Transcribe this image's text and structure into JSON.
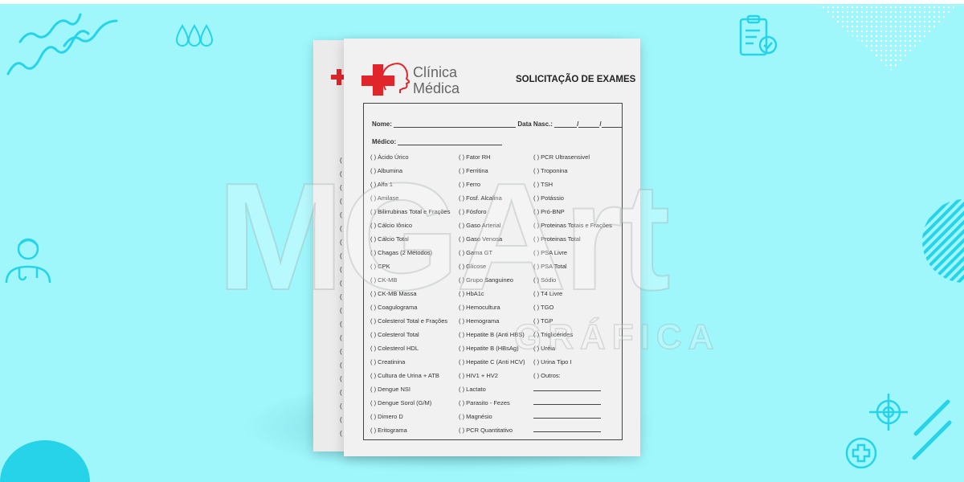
{
  "form": {
    "brand_line1": "Clínica",
    "brand_line2": "Médica",
    "title": "SOLICITAÇÃO DE EXAMES",
    "name_label": "Nome:",
    "birth_label": "Data Nasc.:",
    "doctor_label": "Médico:",
    "col1": [
      "( ) Ácido Úrico",
      "( ) Albumina",
      "( ) Alfa 1",
      "( ) Amilase",
      "( ) Bilirrubinas Total e Frações",
      "( ) Cálcio Iônico",
      "( ) Cálcio Total",
      "( ) Chagas (2 Métodos)",
      "( ) CPK",
      "( ) CK-MB",
      "( ) CK-MB Massa",
      "( ) Coagulograma",
      "( ) Colesterol Total e Frações",
      "( ) Colesterol Total",
      "( ) Colesterol HDL",
      "( ) Creatinina",
      "( ) Cultura de Urina + ATB",
      "( ) Dengue NSI",
      "( ) Dengue Sorol (G/M)",
      "( ) Dimero D",
      "( ) Eritograma"
    ],
    "col2": [
      "( ) Fator RH",
      "( ) Ferritina",
      "( ) Ferro",
      "( ) Fosf. Alcalina",
      "( ) Fósforo",
      "( ) Gaso Arterial",
      "( ) Gaso Venosa",
      "( ) Gama GT",
      "( ) Glicose",
      "( ) Grupo Sanguineo",
      "( ) HbA1c",
      "( ) Hemocultura",
      "( ) Hemograma",
      "( ) Hepatite B (Anti HBS)",
      "( ) Hepatite B (HBsAg)",
      "( ) Hepatite C (Anti HCV)",
      "( ) HIV1 + HV2",
      "( ) Lactato",
      "( ) Parasito - Fezes",
      "( ) Magnésio",
      "( ) PCR Quantitativo"
    ],
    "col3": [
      "( ) PCR Ultrasensivel",
      "( ) Troponina",
      "( ) TSH",
      "( ) Potássio",
      "( ) Pró-BNP",
      "( ) Proteinas Totais e Frações",
      "( ) Proteinas Total",
      "( ) PSA Livre",
      "( ) PSA Total",
      "( ) Sódio",
      "( ) T4 Livre",
      "( ) TGO",
      "( ) TGP",
      "( ) Triglicérides",
      "( ) Uréia",
      "( ) Urina Tipo I",
      "( ) Outros:"
    ]
  },
  "watermark": {
    "main": "MGArt",
    "sub": "GRÁFICA"
  },
  "colors": {
    "background": "#9ff7fc",
    "accent": "#27d3e8",
    "brand_red": "#e0262b"
  },
  "icons": [
    "wave-lines-icon",
    "drops-icon",
    "clipboard-check-icon",
    "doctor-icon",
    "striped-circle-icon",
    "crosshair-icon",
    "medical-cross-icon",
    "triangle-dots-icon"
  ]
}
